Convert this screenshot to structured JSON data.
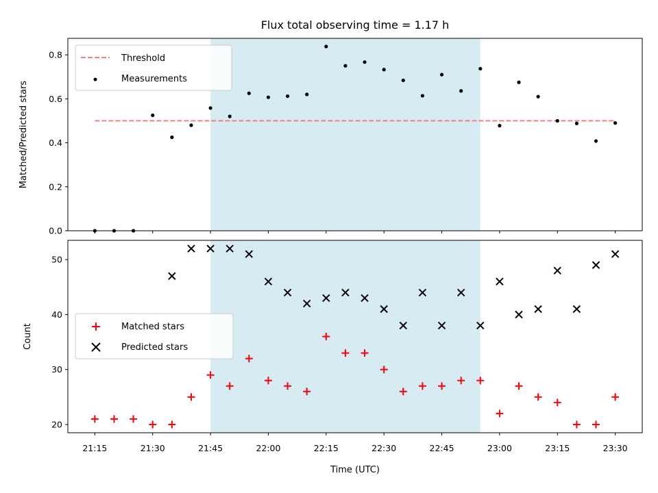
{
  "chart_data": {
    "title": "Flux total observing time = 1.17 h",
    "xlabel": "Time (UTC)",
    "x_tick_labels": [
      "21:15",
      "21:30",
      "21:45",
      "22:00",
      "22:15",
      "22:30",
      "22:45",
      "23:00",
      "23:15",
      "23:30"
    ],
    "x_tick_minutes": [
      0,
      15,
      30,
      45,
      60,
      75,
      90,
      105,
      120,
      135
    ],
    "x_range_minutes": [
      -7,
      142
    ],
    "x_times_minutes": [
      0,
      5,
      10,
      15,
      20,
      25,
      30,
      35,
      40,
      45,
      50,
      55,
      60,
      65,
      70,
      75,
      80,
      85,
      90,
      95,
      100,
      105,
      110,
      115,
      120,
      125,
      130,
      135
    ],
    "shaded_interval_minutes": [
      30,
      100
    ],
    "shade_color": "#add8e6",
    "top_panel": {
      "type": "scatter",
      "ylabel": "Matched/Predicted stars",
      "ylim": [
        0,
        0.875
      ],
      "y_ticks": [
        0.0,
        0.2,
        0.4,
        0.6,
        0.8
      ],
      "y_tick_labels": [
        "0.0",
        "0.2",
        "0.4",
        "0.6",
        "0.8"
      ],
      "threshold": {
        "value": 0.5,
        "x_range_minutes": [
          0,
          135
        ],
        "color": "#f08080"
      },
      "series": [
        {
          "name": "Measurements",
          "color": "#000000",
          "values": [
            0,
            0,
            0,
            0.525,
            0.425,
            0.48,
            0.558,
            0.52,
            0.625,
            0.607,
            0.612,
            0.62,
            0.838,
            0.75,
            0.767,
            0.733,
            0.684,
            0.614,
            0.71,
            0.636,
            0.737,
            0.478,
            0.675,
            0.61,
            0.5,
            0.488,
            0.408,
            0.49
          ]
        }
      ],
      "legend": {
        "position": "upper-left",
        "entries": [
          "Threshold",
          "Measurements"
        ]
      }
    },
    "bottom_panel": {
      "type": "scatter",
      "ylabel": "Count",
      "ylim": [
        18.5,
        53.5
      ],
      "y_ticks": [
        20,
        30,
        40,
        50
      ],
      "y_tick_labels": [
        "20",
        "30",
        "40",
        "50"
      ],
      "series": [
        {
          "name": "Matched stars",
          "marker": "+",
          "color": "#ff0000",
          "values": [
            21,
            21,
            21,
            20,
            20,
            25,
            29,
            27,
            32,
            28,
            27,
            26,
            36,
            33,
            33,
            30,
            26,
            27,
            27,
            28,
            28,
            22,
            27,
            25,
            24,
            20,
            20,
            25
          ]
        },
        {
          "name": "Predicted stars",
          "marker": "x",
          "color": "#000000",
          "values": [
            null,
            null,
            null,
            null,
            47,
            52,
            52,
            52,
            51,
            46,
            44,
            42,
            43,
            44,
            43,
            41,
            38,
            44,
            38,
            44,
            38,
            46,
            40,
            41,
            48,
            41,
            49,
            51
          ]
        }
      ],
      "legend": {
        "position": "center-left",
        "entries": [
          "Matched stars",
          "Predicted stars"
        ]
      }
    }
  }
}
